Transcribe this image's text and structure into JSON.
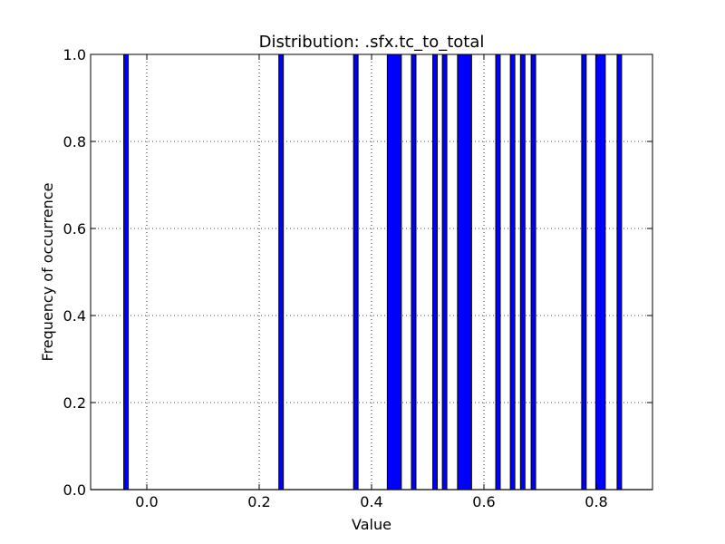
{
  "chart_data": {
    "type": "bar",
    "title": "Distribution: .sfx.tc_to_total",
    "xlabel": "Value",
    "ylabel": "Frequency of occurrence",
    "xlim": [
      -0.1,
      0.9
    ],
    "ylim": [
      0.0,
      1.0
    ],
    "grid": true,
    "bar_color": "#0000ff",
    "x_ticks": [
      0.0,
      0.2,
      0.4,
      0.6,
      0.8
    ],
    "x_tick_labels": [
      "0.0",
      "0.2",
      "0.4",
      "0.6",
      "0.8"
    ],
    "y_ticks": [
      0.0,
      0.2,
      0.4,
      0.6,
      0.8,
      1.0
    ],
    "y_tick_labels": [
      "0.0",
      "0.2",
      "0.4",
      "0.6",
      "0.8",
      "1.0"
    ],
    "bars": [
      {
        "x0": -0.041,
        "x1": -0.033,
        "value": 1.0
      },
      {
        "x0": 0.235,
        "x1": 0.243,
        "value": 1.0
      },
      {
        "x0": 0.368,
        "x1": 0.376,
        "value": 1.0
      },
      {
        "x0": 0.428,
        "x1": 0.453,
        "value": 1.0
      },
      {
        "x0": 0.471,
        "x1": 0.479,
        "value": 1.0
      },
      {
        "x0": 0.509,
        "x1": 0.517,
        "value": 1.0
      },
      {
        "x0": 0.526,
        "x1": 0.534,
        "value": 1.0
      },
      {
        "x0": 0.553,
        "x1": 0.578,
        "value": 1.0
      },
      {
        "x0": 0.621,
        "x1": 0.629,
        "value": 1.0
      },
      {
        "x0": 0.647,
        "x1": 0.655,
        "value": 1.0
      },
      {
        "x0": 0.665,
        "x1": 0.673,
        "value": 1.0
      },
      {
        "x0": 0.684,
        "x1": 0.692,
        "value": 1.0
      },
      {
        "x0": 0.774,
        "x1": 0.782,
        "value": 1.0
      },
      {
        "x0": 0.799,
        "x1": 0.816,
        "value": 1.0
      },
      {
        "x0": 0.837,
        "x1": 0.845,
        "value": 1.0
      }
    ]
  }
}
